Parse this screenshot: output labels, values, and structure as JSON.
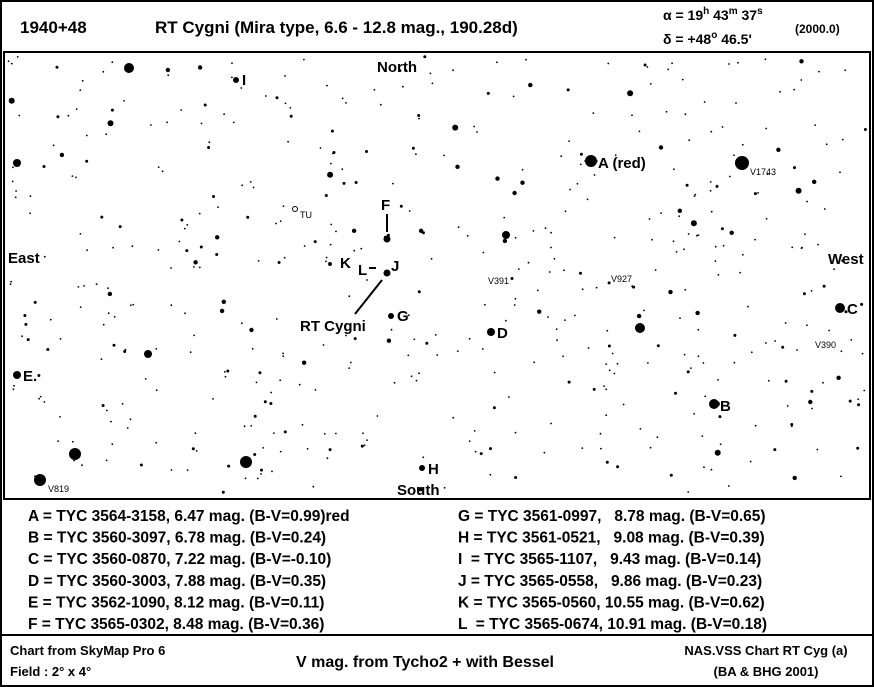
{
  "header": {
    "designation": "1940+48",
    "title": "RT Cygni  (Mira type, 6.6 - 12.8 mag., 190.28d)",
    "ra": [
      "α = 19",
      "h",
      " 43",
      "m",
      " 37",
      "s"
    ],
    "dec": [
      "δ = +48",
      "o",
      " 46.5'"
    ],
    "epoch": "(2000.0)"
  },
  "map": {
    "directions": {
      "north": "North",
      "south": "South",
      "east": "East",
      "west": "West"
    },
    "star_labels": {
      "A": "A (red)",
      "B": "B",
      "C": "C",
      "D": "D",
      "E": "E.",
      "F": "F",
      "G": "G",
      "H": "H",
      "I": "I",
      "J": "J",
      "K": "K",
      "L": "L"
    },
    "target": "RT Cygni",
    "variables": [
      "V1743",
      "TU",
      "V391",
      "V927",
      "V390",
      "V819"
    ]
  },
  "legend": {
    "left": [
      "A = TYC 3564-3158, 6.47 mag. (B-V=0.99)red",
      "B = TYC 3560-3097, 6.78 mag. (B-V=0.24)",
      "C = TYC 3560-0870, 7.22 mag. (B-V=-0.10)",
      "D = TYC 3560-3003, 7.88 mag. (B-V=0.35)",
      "E = TYC 3562-1090, 8.12 mag. (B-V=0.11)",
      "F = TYC 3565-0302, 8.48 mag. (B-V=0.36)"
    ],
    "right": [
      "G = TYC 3561-0997,   8.78 mag. (B-V=0.65)",
      "H = TYC 3561-0521,   9.08 mag. (B-V=0.39)",
      "I  = TYC 3565-1107,   9.43 mag. (B-V=0.14)",
      "J = TYC 3565-0558,   9.86 mag. (B-V=0.23)",
      "K = TYC 3565-0560, 10.55 mag. (B-V=0.62)",
      "L  = TYC 3565-0674, 10.91 mag. (B-V=0.18)"
    ]
  },
  "footer": {
    "left": [
      "Chart from SkyMap Pro 6",
      "Field : 2° x 4°"
    ],
    "center": "V mag. from Tycho2 + with Bessel",
    "right": [
      "NAS.VSS Chart RT Cyg (a)",
      "(BA & BHG 2001)"
    ]
  }
}
